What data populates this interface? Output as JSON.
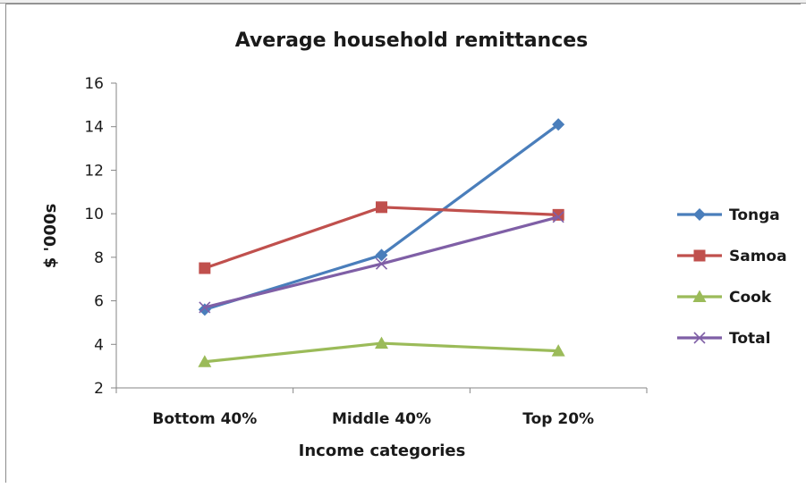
{
  "chart_data": {
    "type": "line",
    "title": "Average household remittances",
    "xlabel": "Income categories",
    "ylabel": "$ '000s",
    "categories": [
      "Bottom 40%",
      "Middle 40%",
      "Top 20%"
    ],
    "ylim": [
      2,
      16
    ],
    "yticks": [
      2,
      4,
      6,
      8,
      10,
      12,
      14,
      16
    ],
    "grid": false,
    "legend_position": "right",
    "series": [
      {
        "name": "Tonga",
        "values": [
          5.6,
          8.1,
          14.1
        ],
        "color": "#4a7ebb",
        "marker": "diamond"
      },
      {
        "name": "Samoa",
        "values": [
          7.5,
          10.3,
          9.95
        ],
        "color": "#c0504d",
        "marker": "square"
      },
      {
        "name": "Cook",
        "values": [
          3.2,
          4.05,
          3.7
        ],
        "color": "#9bbb59",
        "marker": "triangle"
      },
      {
        "name": "Total",
        "values": [
          5.7,
          7.7,
          9.85
        ],
        "color": "#7f5fa6",
        "marker": "x"
      }
    ]
  }
}
